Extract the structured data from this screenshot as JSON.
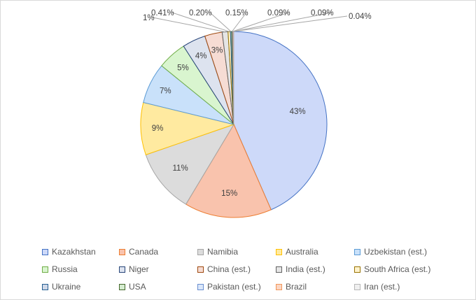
{
  "chart_data": {
    "type": "pie",
    "title": "",
    "legend_position": "bottom",
    "categories": [
      "Kazakhstan",
      "Canada",
      "Namibia",
      "Australia",
      "Uzbekistan (est.)",
      "Russia",
      "Niger",
      "China (est.)",
      "India (est.)",
      "South Africa (est.)",
      "Ukraine",
      "USA",
      "Pakistan (est.)",
      "Brazil",
      "Iran (est.)"
    ],
    "values": [
      43,
      15,
      11,
      9,
      7,
      5,
      4,
      3,
      1,
      0.41,
      0.2,
      0.15,
      0.09,
      0.09,
      0.04
    ],
    "data_labels": [
      "43%",
      "15%",
      "11%",
      "9%",
      "7%",
      "5%",
      "4%",
      "3%",
      "1%",
      "0.41%",
      "0.20%",
      "0.15%",
      "0.09%",
      "0.09%",
      "0.04%"
    ],
    "fills": [
      "#cdd9f9",
      "#f9c3ad",
      "#dcdcdc",
      "#ffeaa0",
      "#c9e1fa",
      "#d9f5cf",
      "#dde3ef",
      "#f6dcd4",
      "#e5e5e5",
      "#fff2cc",
      "#cfd8e8",
      "#d5ecd0",
      "#dbe7fa",
      "#fbd6c3",
      "#f0f0f0"
    ],
    "strokes": [
      "#4472c4",
      "#ed7d31",
      "#a5a5a5",
      "#ffc000",
      "#5b9bd5",
      "#70ad47",
      "#264478",
      "#9e480e",
      "#636363",
      "#997300",
      "#255e91",
      "#43682b",
      "#698ed0",
      "#f1975a",
      "#b7b7b7"
    ]
  }
}
